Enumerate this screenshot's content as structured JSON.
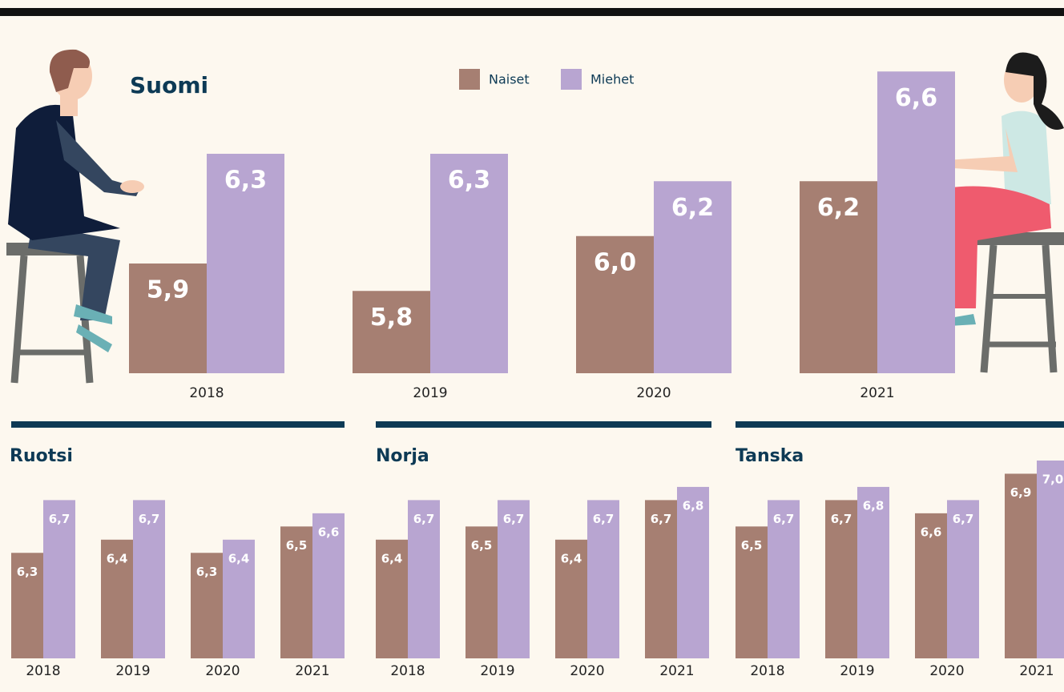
{
  "chart_data": [
    {
      "type": "bar",
      "title": "Suomi",
      "categories": [
        "2018",
        "2019",
        "2020",
        "2021"
      ],
      "series": [
        {
          "name": "Naiset",
          "color": "#a67f72",
          "values": [
            5.9,
            5.8,
            6.0,
            6.2
          ],
          "value_labels": [
            "5,9",
            "5,8",
            "6,0",
            "6,2"
          ]
        },
        {
          "name": "Miehet",
          "color": "#b8a5d1",
          "values": [
            6.3,
            6.3,
            6.2,
            6.6
          ],
          "value_labels": [
            "6,3",
            "6,3",
            "6,2",
            "6,6"
          ]
        }
      ],
      "ylim": [
        5.5,
        6.7
      ]
    },
    {
      "type": "bar",
      "title": "Ruotsi",
      "categories": [
        "2018",
        "2019",
        "2020",
        "2021"
      ],
      "series": [
        {
          "color": "#a67f72",
          "values": [
            6.3,
            6.4,
            6.3,
            6.5
          ],
          "value_labels": [
            "6,3",
            "6,4",
            "6,3",
            "6,5"
          ]
        },
        {
          "color": "#b8a5d1",
          "values": [
            6.7,
            6.7,
            6.4,
            6.6
          ],
          "value_labels": [
            "6,7",
            "6,7",
            "6,4",
            "6,6"
          ]
        }
      ],
      "ylim": [
        5.5,
        7.0
      ]
    },
    {
      "type": "bar",
      "title": "Norja",
      "categories": [
        "2018",
        "2019",
        "2020",
        "2021"
      ],
      "series": [
        {
          "color": "#a67f72",
          "values": [
            6.4,
            6.5,
            6.4,
            6.7
          ],
          "value_labels": [
            "6,4",
            "6,5",
            "6,4",
            "6,7"
          ]
        },
        {
          "color": "#b8a5d1",
          "values": [
            6.7,
            6.7,
            6.7,
            6.8
          ],
          "value_labels": [
            "6,7",
            "6,7",
            "6,7",
            "6,8"
          ]
        }
      ],
      "ylim": [
        5.5,
        7.0
      ]
    },
    {
      "type": "bar",
      "title": "Tanska",
      "categories": [
        "2018",
        "2019",
        "2020",
        "2021"
      ],
      "series": [
        {
          "color": "#a67f72",
          "values": [
            6.5,
            6.7,
            6.6,
            6.9
          ],
          "value_labels": [
            "6,5",
            "6,7",
            "6,6",
            "6,9"
          ]
        },
        {
          "color": "#b8a5d1",
          "values": [
            6.7,
            6.8,
            6.7,
            7.0
          ],
          "value_labels": [
            "6,7",
            "6,8",
            "6,7",
            "7,0"
          ]
        }
      ],
      "ylim": [
        5.5,
        7.0
      ]
    }
  ]
}
